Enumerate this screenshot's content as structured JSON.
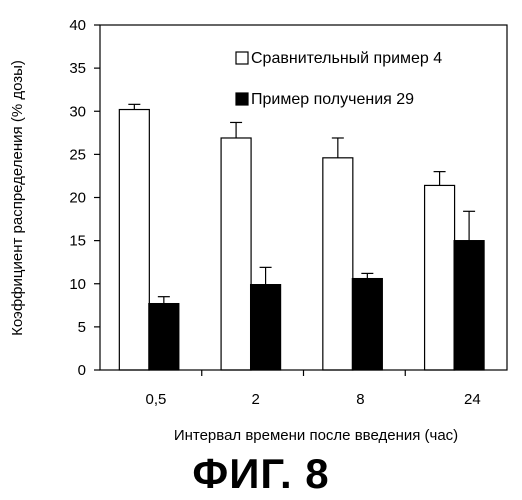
{
  "figure_caption": "ФИГ. 8",
  "chart_data": {
    "type": "bar",
    "title": "",
    "xlabel": "Интервал времени после введения (час)",
    "ylabel": "Коэффициент распределения (% дозы)",
    "categories": [
      "0,5",
      "2",
      "8",
      "24"
    ],
    "ylim": [
      0,
      40
    ],
    "yticks": [
      0,
      5,
      10,
      15,
      20,
      25,
      30,
      35,
      40
    ],
    "grid": false,
    "legend_position": "top-right",
    "series": [
      {
        "name": "Сравнительный пример 4",
        "fill": "#ffffff",
        "values": [
          30.2,
          26.9,
          24.6,
          21.4
        ],
        "error": [
          0.6,
          1.8,
          2.3,
          1.6
        ]
      },
      {
        "name": "Пример получения 29",
        "fill": "#000000",
        "values": [
          7.7,
          9.9,
          10.6,
          15.0
        ],
        "error": [
          0.8,
          2.0,
          0.6,
          3.4
        ]
      }
    ]
  }
}
